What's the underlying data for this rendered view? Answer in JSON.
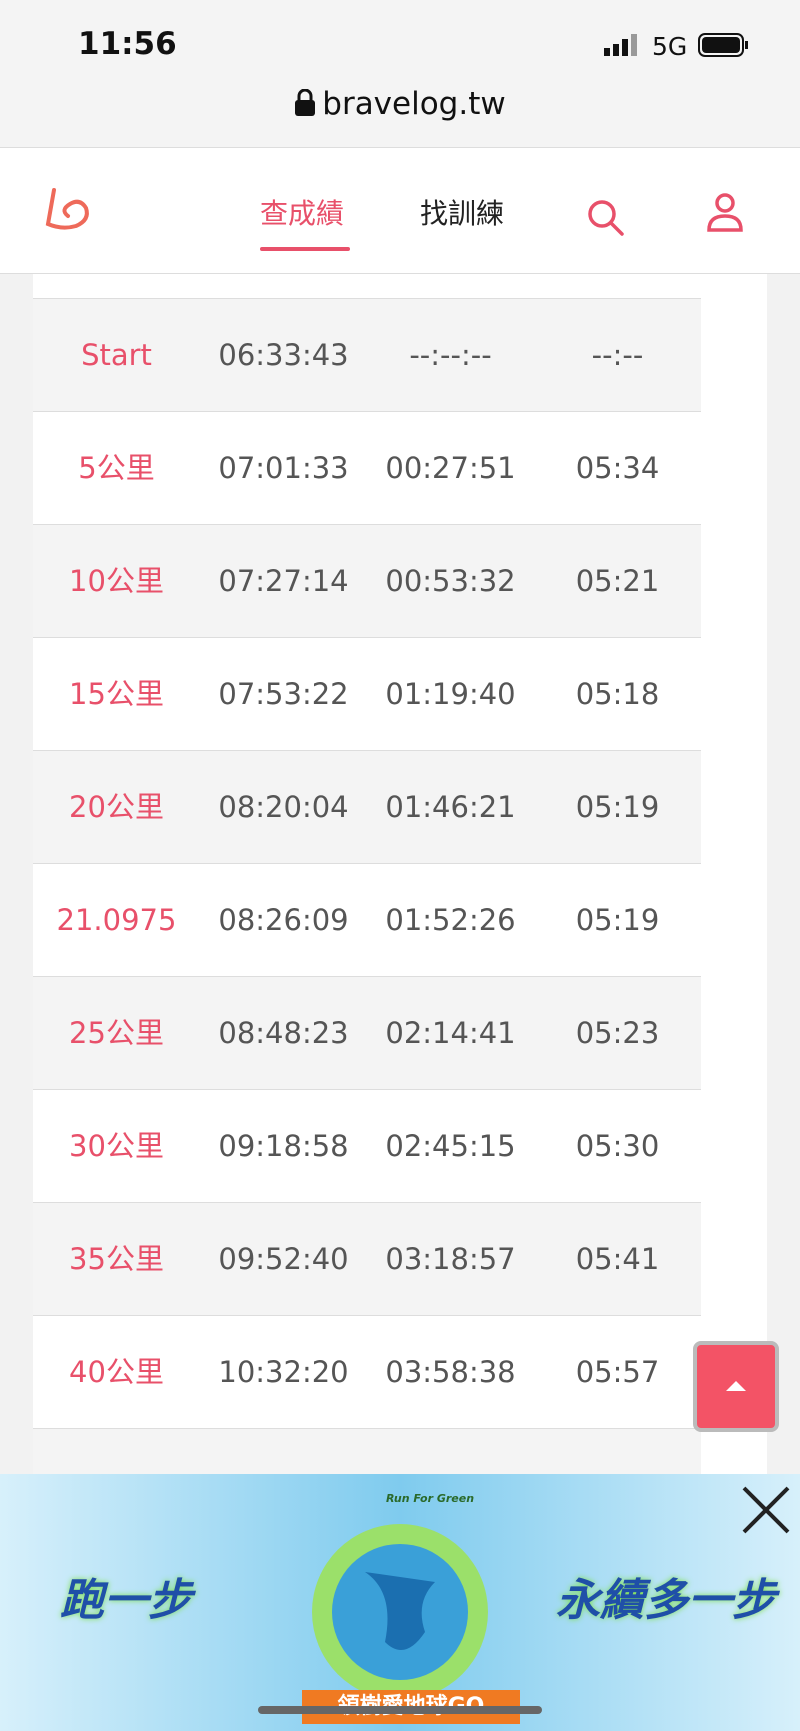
{
  "status_bar": {
    "time": "11:56",
    "network": "5G"
  },
  "browser": {
    "url": "bravelog.tw"
  },
  "nav": {
    "items": [
      "查成績",
      "找訓練"
    ]
  },
  "table": {
    "rows": [
      [
        "Start",
        "06:33:43",
        "--:--:--",
        "--:--"
      ],
      [
        "5公里",
        "07:01:33",
        "00:27:51",
        "05:34"
      ],
      [
        "10公里",
        "07:27:14",
        "00:53:32",
        "05:21"
      ],
      [
        "15公里",
        "07:53:22",
        "01:19:40",
        "05:18"
      ],
      [
        "20公里",
        "08:20:04",
        "01:46:21",
        "05:19"
      ],
      [
        "21.0975",
        "08:26:09",
        "01:52:26",
        "05:19"
      ],
      [
        "25公里",
        "08:48:23",
        "02:14:41",
        "05:23"
      ],
      [
        "30公里",
        "09:18:58",
        "02:45:15",
        "05:30"
      ],
      [
        "35公里",
        "09:52:40",
        "03:18:57",
        "05:41"
      ],
      [
        "40公里",
        "10:32:20",
        "03:58:38",
        "05:57"
      ]
    ]
  },
  "ad": {
    "left_text": "跑一步",
    "right_text": "永續多一步",
    "tagline": "Run For Green",
    "button": "領樹愛地球GO"
  }
}
